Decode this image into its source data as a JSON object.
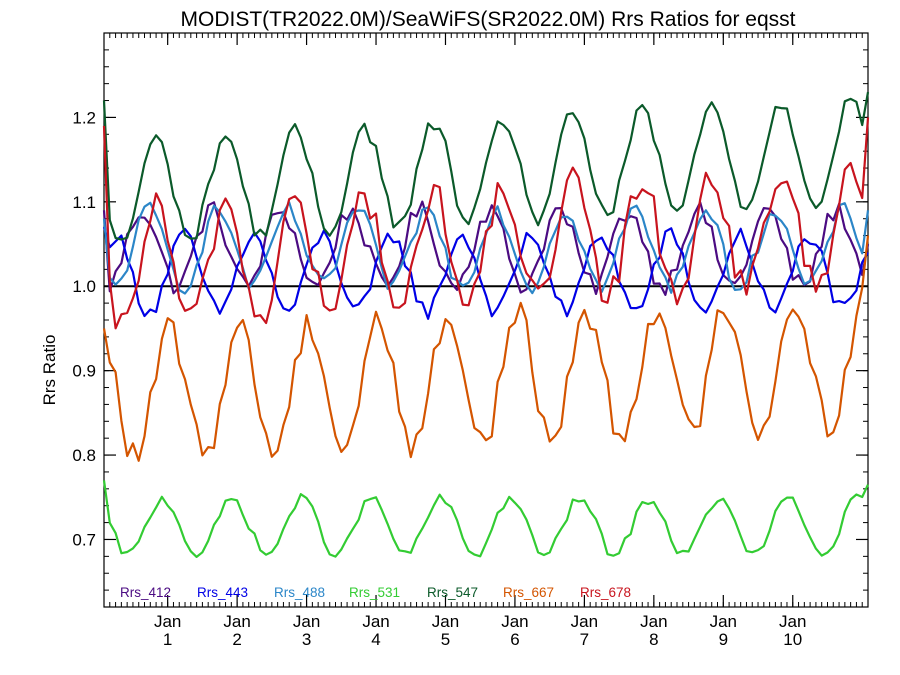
{
  "chart_data": {
    "type": "line",
    "title": "MODIST(TR2022.0M)/SeaWiFS(SR2022.0M)  Rrs Ratios for eqsst",
    "ylabel": "Rrs Ratio",
    "xlabel": "",
    "xlim": [
      0,
      132
    ],
    "ylim": [
      0.62,
      1.3
    ],
    "yticks": [
      {
        "v": 0.7,
        "label": "0.7"
      },
      {
        "v": 0.8,
        "label": "0.8"
      },
      {
        "v": 0.9,
        "label": "0.9"
      },
      {
        "v": 1.0,
        "label": "1.0"
      },
      {
        "v": 1.1,
        "label": "1.1"
      },
      {
        "v": 1.2,
        "label": "1.2"
      }
    ],
    "xticks": [
      {
        "x": 11,
        "top": "Jan",
        "bottom": "1"
      },
      {
        "x": 23,
        "top": "Jan",
        "bottom": "2"
      },
      {
        "x": 35,
        "top": "Jan",
        "bottom": "3"
      },
      {
        "x": 47,
        "top": "Jan",
        "bottom": "4"
      },
      {
        "x": 59,
        "top": "Jan",
        "bottom": "5"
      },
      {
        "x": 71,
        "top": "Jan",
        "bottom": "6"
      },
      {
        "x": 83,
        "top": "Jan",
        "bottom": "7"
      },
      {
        "x": 95,
        "top": "Jan",
        "bottom": "8"
      },
      {
        "x": 107,
        "top": "Jan",
        "bottom": "9"
      },
      {
        "x": 119,
        "top": "Jan",
        "bottom": "10"
      }
    ],
    "reference_line": 1.0,
    "series": [
      {
        "name": "Rrs_412",
        "color": "#4b0b82",
        "base": 1.045,
        "amp": 0.045,
        "noise": 0.012,
        "phase": 0.3,
        "trend": 0.0,
        "start": 1.09,
        "end": 1.05
      },
      {
        "name": "Rrs_443",
        "color": "#0000e6",
        "base": 1.015,
        "amp": 0.045,
        "noise": 0.01,
        "phase": 0.9,
        "trend": 0.0,
        "start": 1.07,
        "end": 1.04
      },
      {
        "name": "Rrs_488",
        "color": "#2b86c8",
        "base": 1.045,
        "amp": 0.045,
        "noise": 0.01,
        "phase": 0.4,
        "trend": 0.0,
        "start": 1.08,
        "end": 1.09
      },
      {
        "name": "Rrs_531",
        "color": "#33cc33",
        "base": 0.715,
        "amp": 0.033,
        "noise": 0.006,
        "phase": 0.6,
        "trend": 0.0,
        "start": 0.77,
        "end": 0.765
      },
      {
        "name": "Rrs_547",
        "color": "#0b5a2a",
        "base": 1.11,
        "amp": 0.06,
        "noise": 0.01,
        "phase": 0.5,
        "trend": 0.0004,
        "start": 1.22,
        "end": 1.23
      },
      {
        "name": "Rrs_667",
        "color": "#d45500",
        "base": 0.87,
        "amp": 0.075,
        "noise": 0.018,
        "phase": 0.7,
        "trend": 0.0003,
        "start": 0.95,
        "end": 1.06
      },
      {
        "name": "Rrs_678",
        "color": "#c8141e",
        "base": 1.02,
        "amp": 0.07,
        "noise": 0.02,
        "phase": 0.5,
        "trend": 0.0004,
        "start": 1.19,
        "end": 1.2
      }
    ]
  }
}
